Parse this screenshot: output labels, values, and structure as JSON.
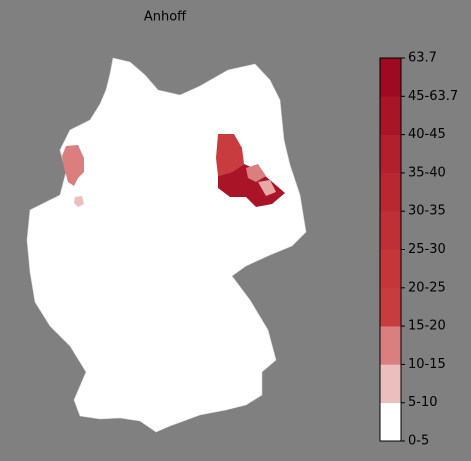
{
  "title": "Anhoff",
  "legend": {
    "labels": [
      "0-5",
      "5-10",
      "10-15",
      "15-20",
      "20-25",
      "25-30",
      "30-35",
      "35-40",
      "40-45",
      "45-63.7",
      "63.7"
    ],
    "colors": [
      "#ffffff",
      "#ecbfbf",
      "#db7e80",
      "#c83b3e",
      "#c4363a",
      "#bf2f36",
      "#b92831",
      "#b21f2d",
      "#a91527",
      "#9d0a21"
    ]
  }
}
